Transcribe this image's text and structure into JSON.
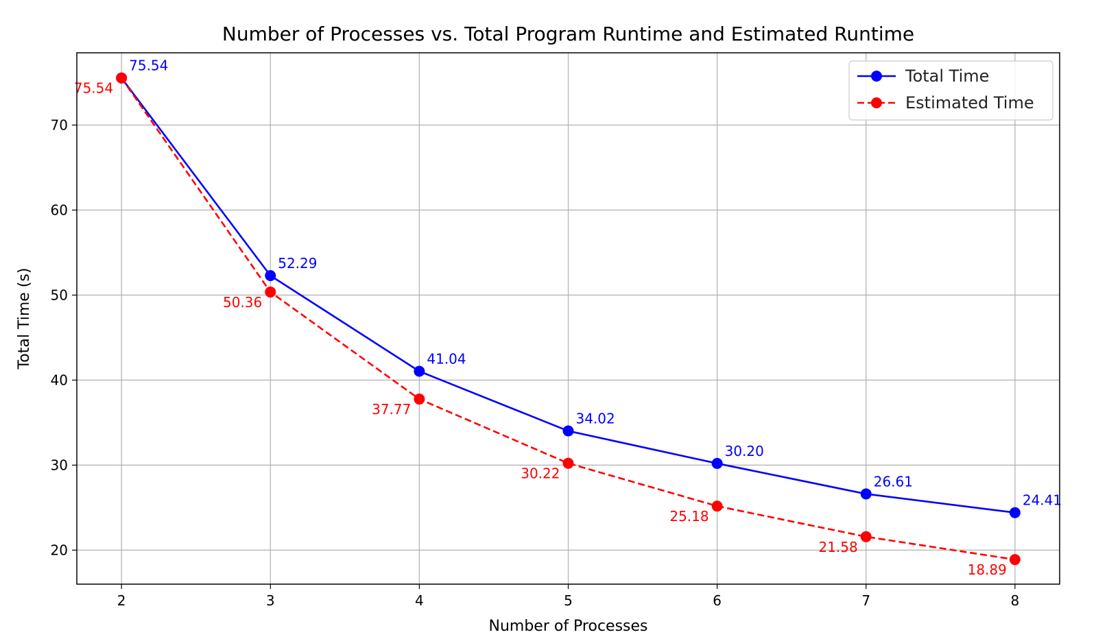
{
  "chart_data": {
    "type": "line",
    "title": "Number of Processes vs. Total Program Runtime and Estimated Runtime",
    "xlabel": "Number of Processes",
    "ylabel": "Total Time (s)",
    "x": [
      2,
      3,
      4,
      5,
      6,
      7,
      8
    ],
    "x_ticks": [
      "2",
      "3",
      "4",
      "5",
      "6",
      "7",
      "8"
    ],
    "y_ticks": [
      "20",
      "30",
      "40",
      "50",
      "60",
      "70"
    ],
    "y_tick_values": [
      20,
      30,
      40,
      50,
      60,
      70
    ],
    "xlim": [
      1.7,
      8.3
    ],
    "ylim": [
      16,
      78.5
    ],
    "grid": true,
    "legend_position": "top-right",
    "series": [
      {
        "name": "Total Time",
        "color": "#0000ff",
        "linestyle": "solid",
        "marker": "circle",
        "values": [
          75.54,
          52.29,
          41.04,
          34.02,
          30.2,
          26.61,
          24.41
        ],
        "labels": [
          "75.54",
          "52.29",
          "41.04",
          "34.02",
          "30.20",
          "26.61",
          "24.41"
        ],
        "label_side": "upper-right"
      },
      {
        "name": "Estimated Time",
        "color": "#ff0000",
        "linestyle": "dashed",
        "marker": "circle",
        "values": [
          75.54,
          50.36,
          37.77,
          30.22,
          25.18,
          21.58,
          18.89
        ],
        "labels": [
          "75.54",
          "50.36",
          "37.77",
          "30.22",
          "25.18",
          "21.58",
          "18.89"
        ],
        "label_side": "lower-left"
      }
    ]
  }
}
